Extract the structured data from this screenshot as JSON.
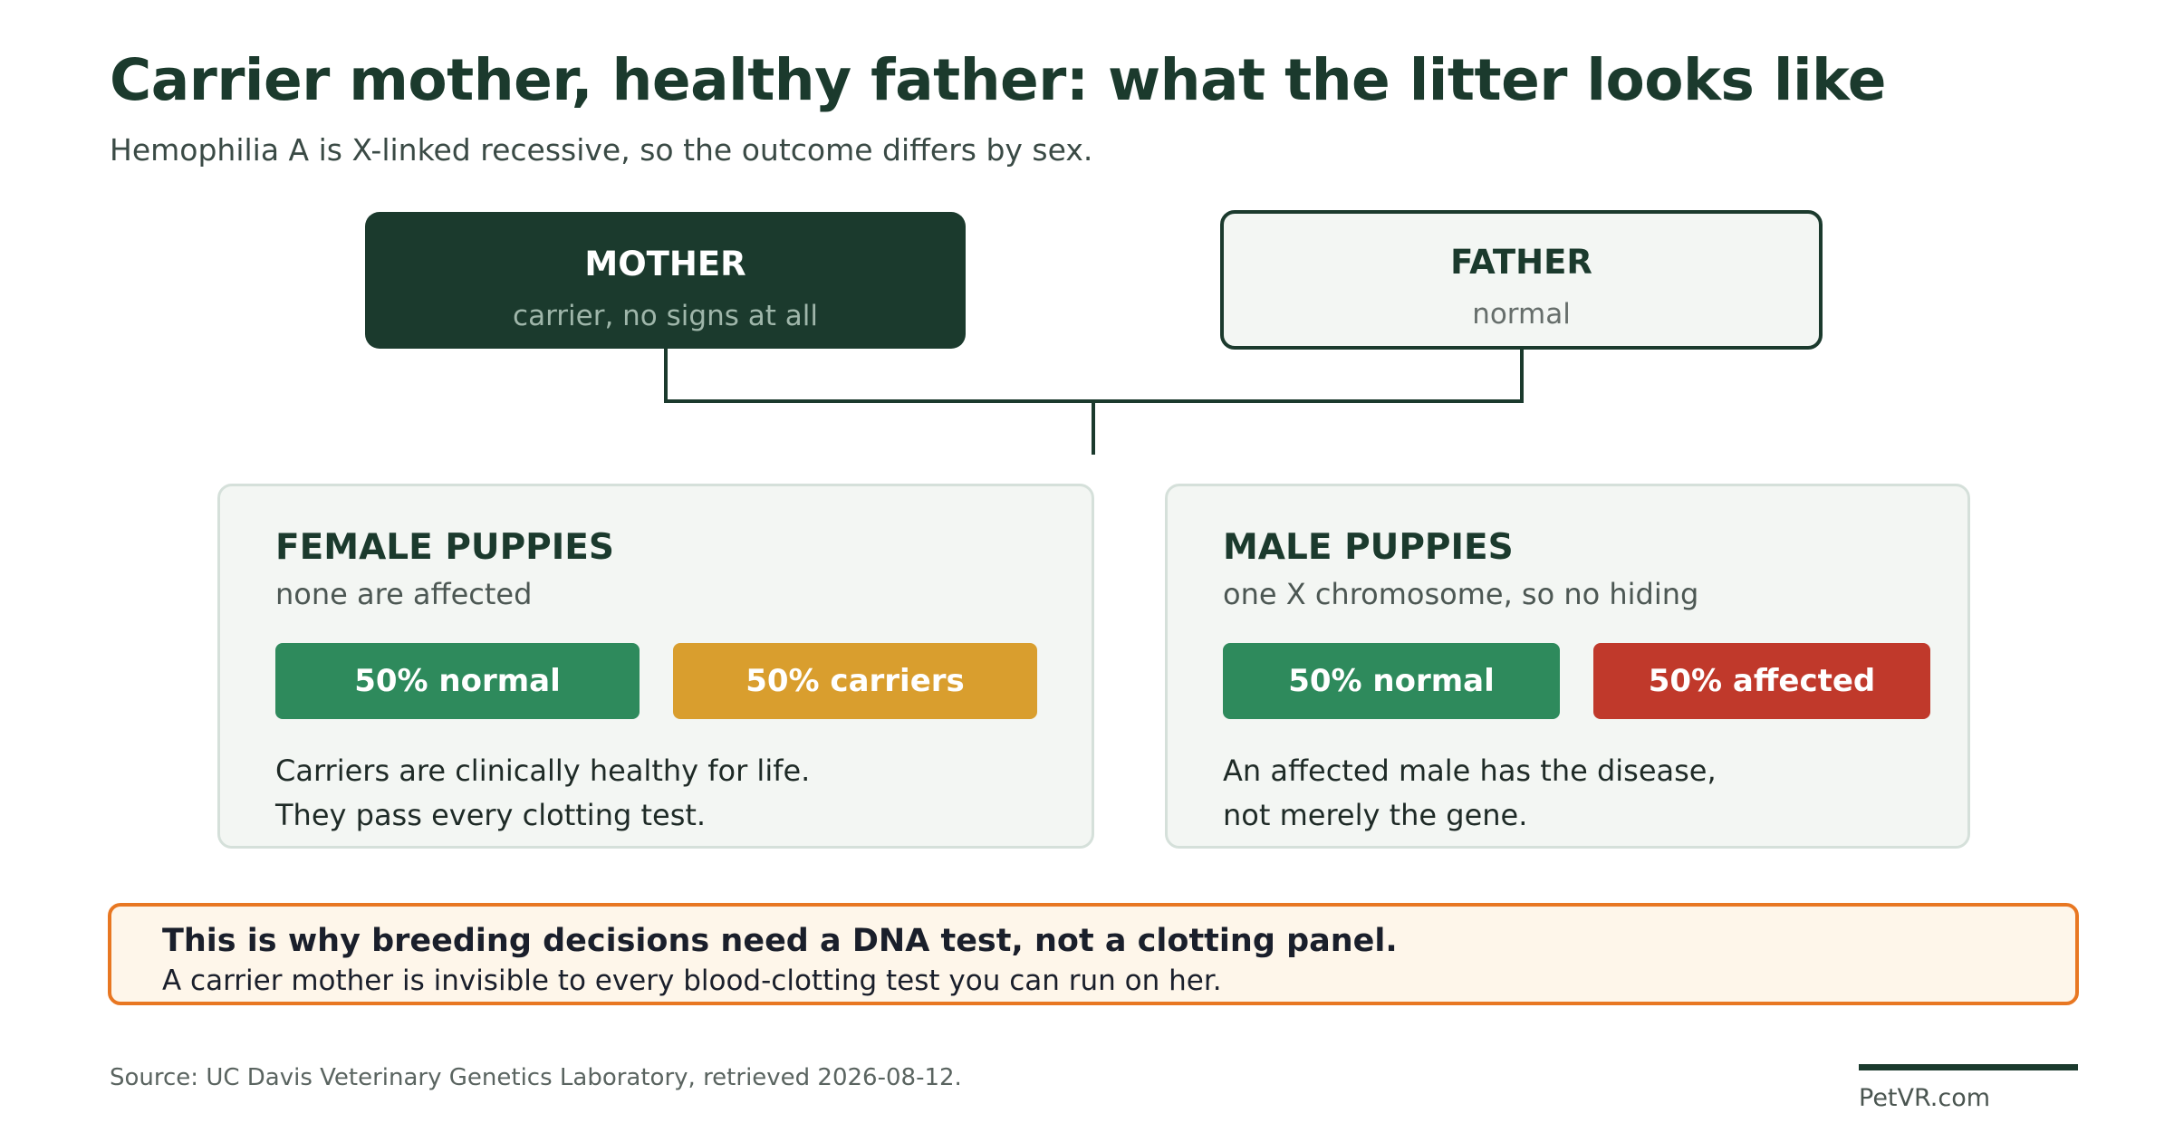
{
  "title": "Carrier mother, healthy father: what the litter looks like",
  "subtitle": "Hemophilia A is X-linked recessive, so the outcome differs by sex.",
  "parents": {
    "mother": {
      "name": "MOTHER",
      "description": "carrier, no signs at all"
    },
    "father": {
      "name": "FATHER",
      "description": "normal"
    }
  },
  "offspring": {
    "female": {
      "title": "FEMALE PUPPIES",
      "subtitle": "none are affected",
      "outcomes": [
        {
          "label": "50% normal",
          "color": "#2e8a5c"
        },
        {
          "label": "50% carriers",
          "color": "#d99e2e"
        }
      ],
      "note": [
        "Carriers are clinically healthy for life.",
        "They pass every clotting test."
      ]
    },
    "male": {
      "title": "MALE PUPPIES",
      "subtitle": "one X chromosome, so no hiding",
      "outcomes": [
        {
          "label": "50% normal",
          "color": "#2e8a5c"
        },
        {
          "label": "50% affected",
          "color": "#c0392b"
        }
      ],
      "note": [
        "An affected male has the disease,",
        "not merely the gene."
      ]
    }
  },
  "callout": {
    "headline": "This is why breeding decisions need a DNA test, not a clotting panel.",
    "body": "A carrier mother is invisible to every blood-clotting test you can run on her."
  },
  "source": "Source: UC Davis Veterinary Genetics Laboratory, retrieved 2026-08-12.",
  "brand": "PetVR.com",
  "colors": {
    "primary": "#1b3a2d",
    "normal": "#2e8a5c",
    "carrier": "#d99e2e",
    "affected": "#c0392b",
    "callout_border": "#e87722",
    "callout_background": "#fef6ea"
  }
}
